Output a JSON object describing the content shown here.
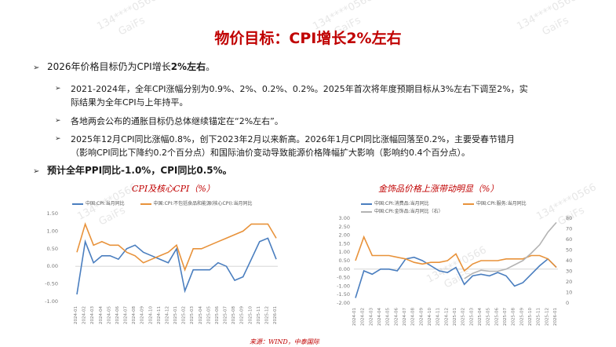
{
  "title": "物价目标：CPI增长2%左右",
  "watermark": [
    "134****0566",
    "GaiFs"
  ],
  "bullets": {
    "b1_pre": "2026年价格目标仍为CPI增长",
    "b1_bold": "2%左右",
    "b1_post": "。",
    "sub1_l1": "2021-2024年，全年CPI涨幅分别为0.9%、2%、0.2%、0.2%。2025年首次将年度预期目标从3%左右下调至2%，实",
    "sub1_l2": "际结果为全年CPI与上年持平。",
    "sub2": "各地两会公布的通胀目标仍总体继续锚定在“2%左右”。",
    "sub3_l1": "2025年12月CPI同比涨幅0.8%，创下2023年2月以来新高。2026年1月CPI同比涨幅回落至0.2%，主要受春节错月",
    "sub3_l2": "（影响CPI同比下降约0.2个百分点）和国际油价变动导致能源价格降幅扩大影响（影响约0.4个百分点）。",
    "b2": "预计全年PPI同比-1.0%，CPI同比0.5%。"
  },
  "source": "来源：WIND，中泰国际",
  "colors": {
    "blue": "#4a7ebf",
    "orange": "#e8923a",
    "gray": "#b3b3b3"
  },
  "chart_data": [
    {
      "type": "line",
      "title": "CPI及核心CPI（%）",
      "x": [
        "2024-01",
        "2024-02",
        "2024-03",
        "2024-04",
        "2024-05",
        "2024-06",
        "2024-07",
        "2024-08",
        "2024-09",
        "2024-10",
        "2024-11",
        "2024-12",
        "2025-01",
        "2025-02",
        "2025-03",
        "2025-04",
        "2025-05",
        "2025-06",
        "2025-07",
        "2025-08",
        "2025-09",
        "2025-10",
        "2025-11",
        "2025-12",
        "2026-01"
      ],
      "x_ticks": [
        "2024-01",
        "2024-02",
        "2024-03",
        "2024-04",
        "2024-05",
        "2024-06",
        "2024-07",
        "2024-08",
        "2024-09",
        "2024-10",
        "2024-11",
        "2024-12",
        "2025-01",
        "2025-02",
        "2025-03",
        "2025-04",
        "2025-05",
        "2025-06",
        "2025-07",
        "2025-08",
        "2025-09",
        "2025-10",
        "2025-11",
        "2025-12",
        "2026-01"
      ],
      "ylim": [
        -1.0,
        1.5
      ],
      "yticks": [
        "1.50",
        "1.00",
        "0.50",
        "0.00",
        "-0.50",
        "-1.00"
      ],
      "ytick_vals": [
        1.5,
        1.0,
        0.5,
        0.0,
        -0.5,
        -1.0
      ],
      "series": [
        {
          "name": "中国:CPI:当月同比",
          "color": "#4a7ebf",
          "values": [
            -0.8,
            0.7,
            0.1,
            0.3,
            0.3,
            0.2,
            0.5,
            0.6,
            0.4,
            0.3,
            0.2,
            0.1,
            0.5,
            -0.7,
            -0.1,
            -0.1,
            -0.1,
            0.1,
            0.0,
            -0.4,
            -0.3,
            0.2,
            0.7,
            0.8,
            0.2
          ]
        },
        {
          "name": "中国:CPI:不包括食品和能源(核心CPI):当月同比",
          "color": "#e8923a",
          "values": [
            0.4,
            1.2,
            0.6,
            0.7,
            0.6,
            0.6,
            0.4,
            0.3,
            0.1,
            0.2,
            0.3,
            0.4,
            0.6,
            -0.1,
            0.5,
            0.5,
            0.6,
            0.7,
            0.8,
            0.9,
            1.0,
            1.2,
            1.2,
            1.2,
            0.8
          ]
        }
      ]
    },
    {
      "type": "line",
      "title": "金饰品价格上涨带动明显（%）",
      "x": [
        "2024-01",
        "2024-02",
        "2024-03",
        "2024-04",
        "2024-05",
        "2024-06",
        "2024-07",
        "2024-08",
        "2024-09",
        "2024-10",
        "2024-11",
        "2024-12",
        "2025-01",
        "2025-02",
        "2025-03",
        "2025-04",
        "2025-05",
        "2025-06",
        "2025-07",
        "2025-08",
        "2025-09",
        "2025-10",
        "2025-11",
        "2025-12",
        "2026-01"
      ],
      "x_ticks": [
        "2024-01",
        "2024-02",
        "2024-03",
        "2024-04",
        "2024-05",
        "2024-06",
        "2024-07",
        "2024-08",
        "2024-09",
        "2024-10",
        "2024-11",
        "2024-12",
        "2025-01",
        "2025-02",
        "2025-03",
        "2025-04",
        "2025-05",
        "2025-06",
        "2025-07",
        "2025-08",
        "2025-09",
        "2025-10",
        "2025-11",
        "2025-12",
        "2026-01"
      ],
      "ylim_left": [
        -2.0,
        3.0
      ],
      "yticks_left": [
        "3.00",
        "2.50",
        "2.00",
        "1.50",
        "1.00",
        "0.50",
        "0.00",
        "-0.50",
        "-1.00",
        "-1.50",
        "-2.00"
      ],
      "ytick_vals_left": [
        3.0,
        2.5,
        2.0,
        1.5,
        1.0,
        0.5,
        0.0,
        -0.5,
        -1.0,
        -1.5,
        -2.0
      ],
      "ylim_right": [
        0,
        80
      ],
      "yticks_right": [
        "80",
        "70",
        "60",
        "50",
        "40",
        "30",
        "20",
        "10",
        "0"
      ],
      "ytick_vals_right": [
        80,
        70,
        60,
        50,
        40,
        30,
        20,
        10,
        0
      ],
      "series": [
        {
          "name": "中国:CPI:消费品:当月同比",
          "color": "#4a7ebf",
          "axis": "left",
          "values": [
            -1.7,
            -0.1,
            -0.3,
            0.0,
            0.0,
            -0.1,
            0.6,
            0.7,
            0.5,
            0.2,
            -0.1,
            -0.2,
            0.1,
            -0.9,
            -0.4,
            -0.3,
            -0.4,
            -0.2,
            -0.4,
            -1.0,
            -0.8,
            -0.3,
            0.2,
            0.6,
            0.1
          ]
        },
        {
          "name": "中国:CPI:服务:当月同比",
          "color": "#e8923a",
          "axis": "left",
          "values": [
            0.5,
            1.9,
            0.8,
            0.8,
            0.8,
            0.7,
            0.6,
            0.4,
            0.3,
            0.4,
            0.4,
            0.5,
            0.9,
            -0.1,
            0.3,
            0.5,
            0.5,
            0.5,
            0.6,
            0.6,
            0.6,
            0.8,
            0.8,
            0.6,
            0.1
          ]
        },
        {
          "name": "中国:CPI:金饰品:当月同比（右）",
          "color": "#b3b3b3",
          "axis": "right",
          "values": [
            null,
            null,
            null,
            null,
            null,
            null,
            null,
            null,
            null,
            null,
            null,
            null,
            null,
            23,
            28,
            31,
            30,
            30,
            32,
            36,
            40,
            47,
            55,
            67,
            76
          ]
        }
      ]
    }
  ]
}
